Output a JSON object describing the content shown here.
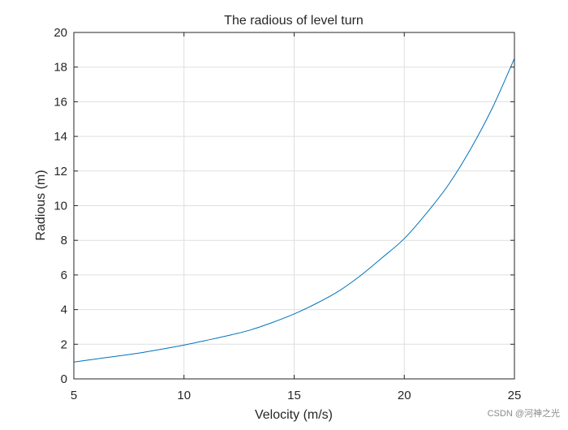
{
  "chart_data": {
    "type": "line",
    "title": "The radious of level turn",
    "xlabel": "Velocity (m/s)",
    "ylabel": "Radious (m)",
    "xlim": [
      5,
      25
    ],
    "ylim": [
      0,
      20
    ],
    "xticks": [
      5,
      10,
      15,
      20,
      25
    ],
    "yticks": [
      0,
      2,
      4,
      6,
      8,
      10,
      12,
      14,
      16,
      18,
      20
    ],
    "grid": true,
    "series": [
      {
        "color": "#0072bd",
        "x": [
          5,
          6,
          7,
          8,
          9,
          10,
          11,
          12,
          13,
          14,
          15,
          16,
          17,
          18,
          19,
          20,
          21,
          22,
          23,
          24,
          25
        ],
        "y": [
          0.97,
          1.15,
          1.32,
          1.5,
          1.72,
          1.95,
          2.22,
          2.5,
          2.82,
          3.25,
          3.75,
          4.35,
          5.05,
          5.95,
          7.0,
          8.1,
          9.55,
          11.2,
          13.25,
          15.65,
          18.5
        ]
      }
    ]
  },
  "watermark": "CSDN @河神之光"
}
